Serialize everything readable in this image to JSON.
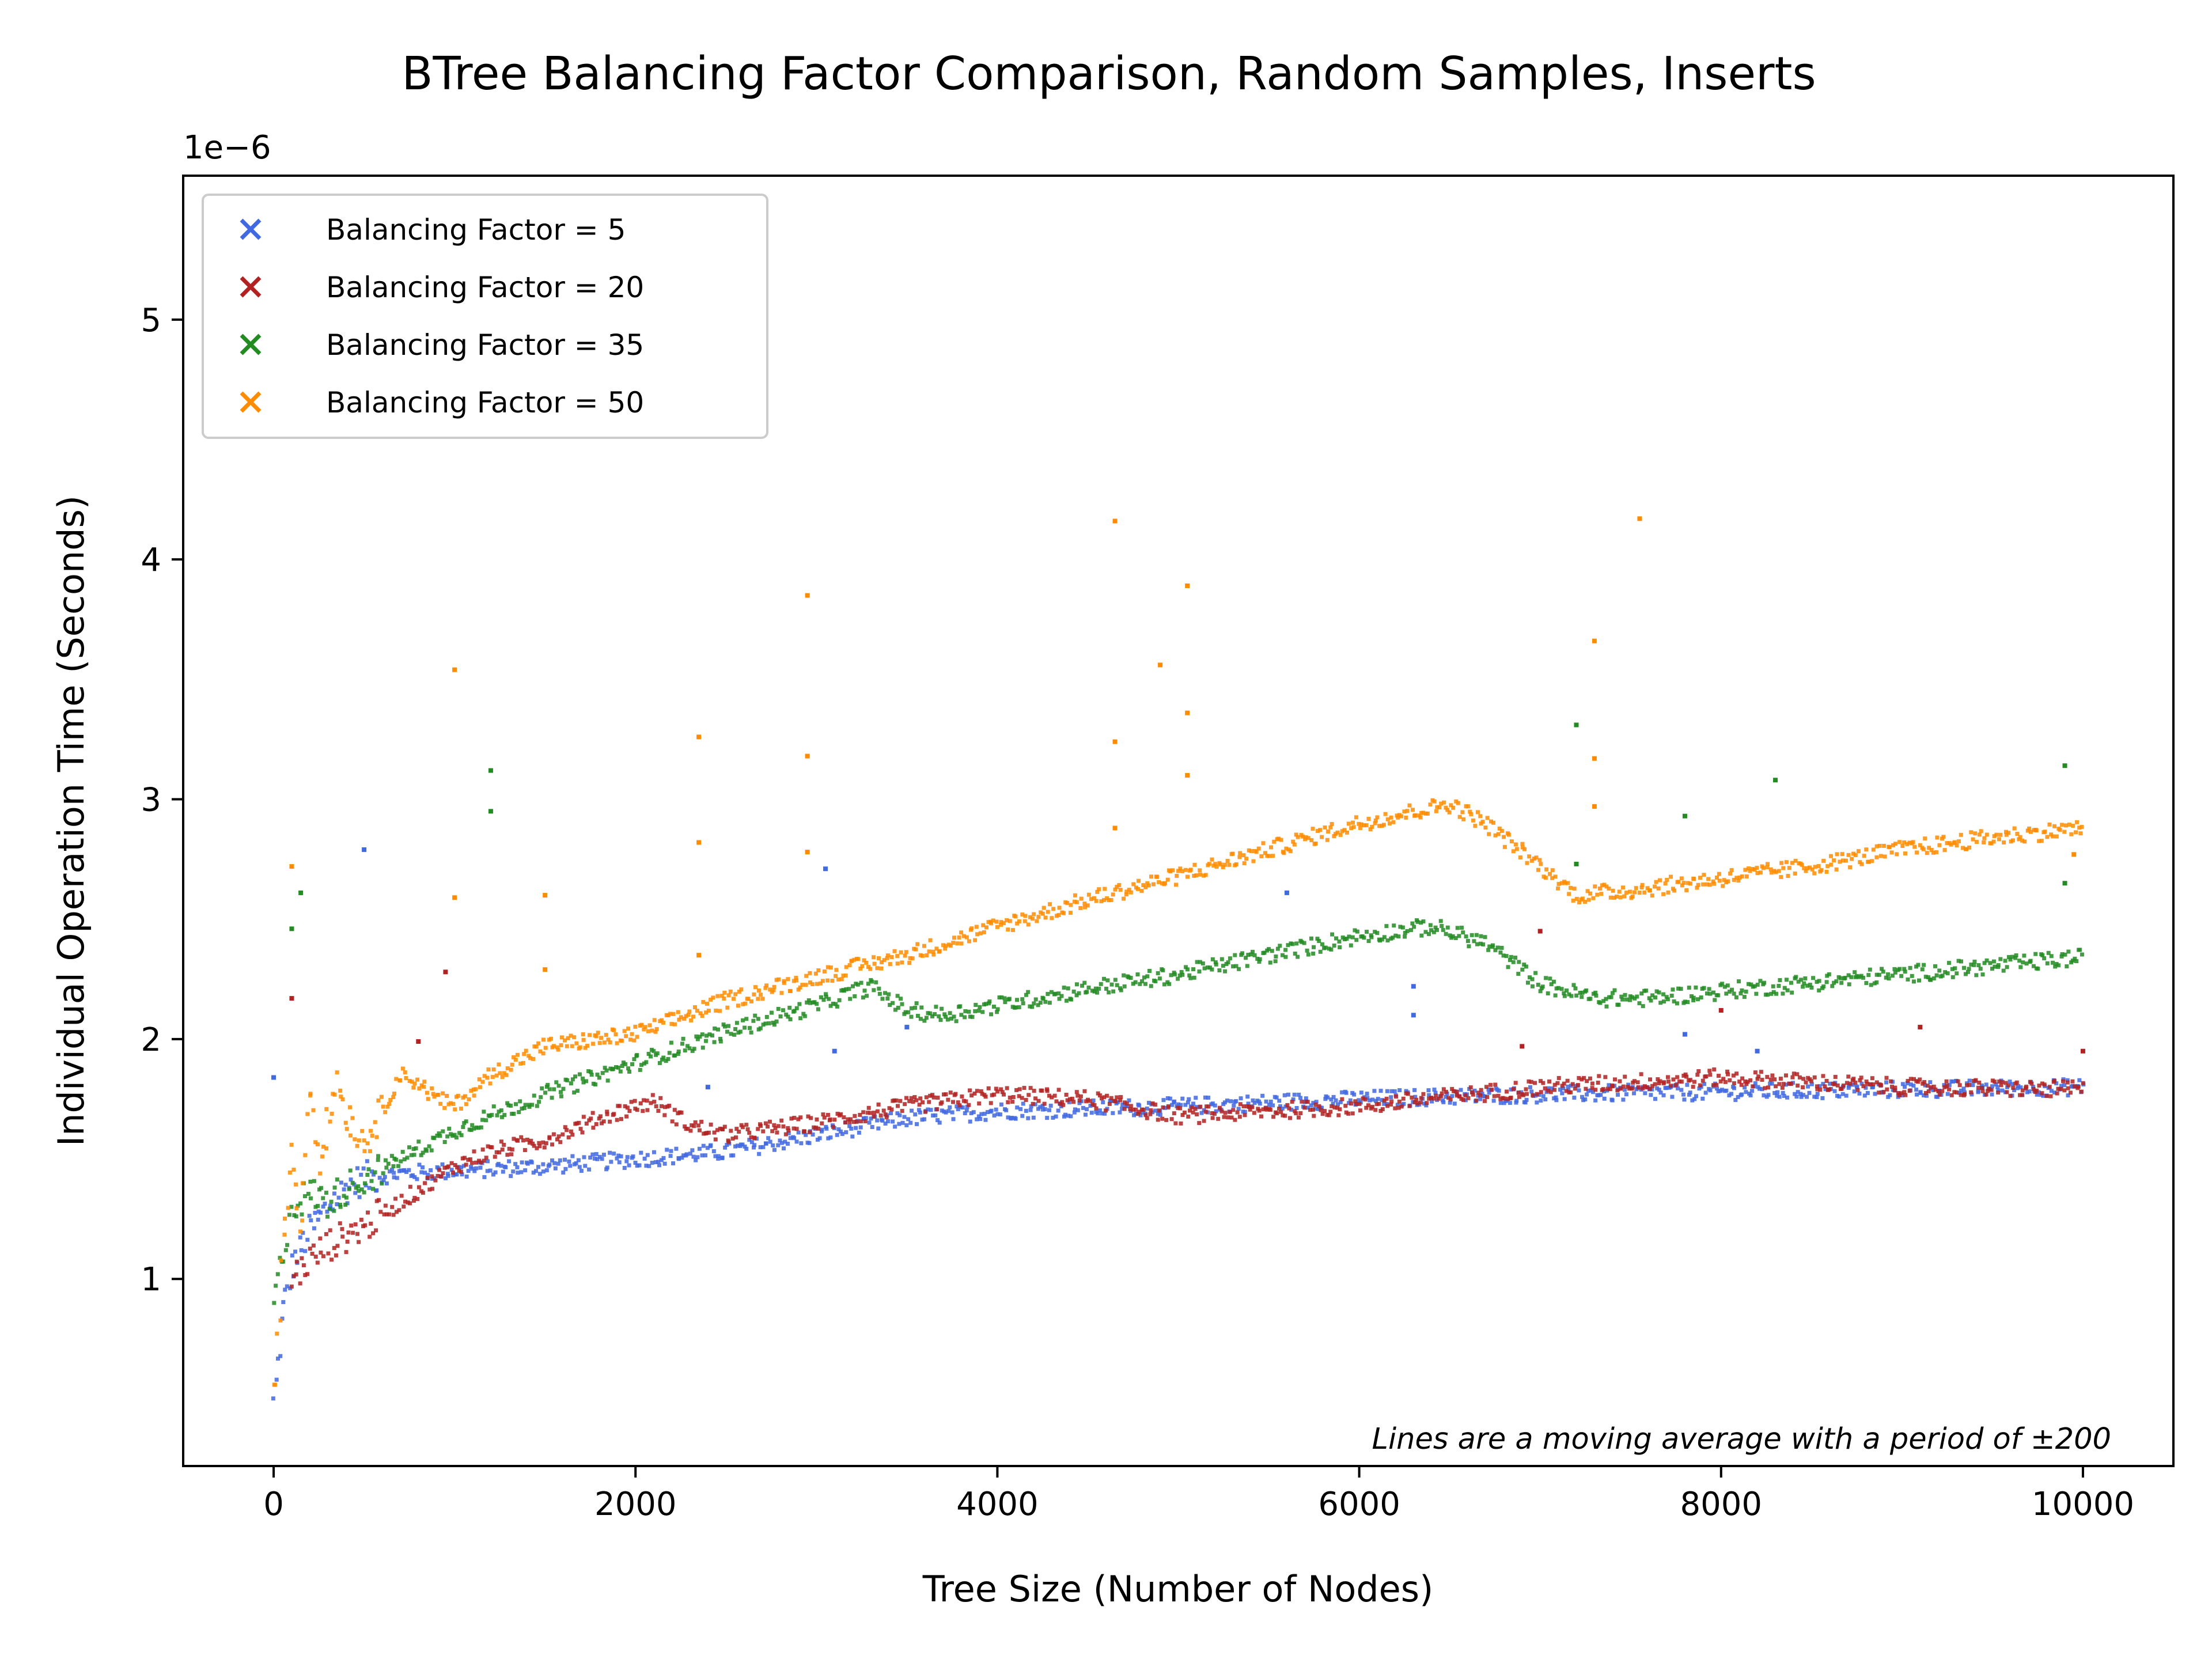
{
  "chart_data": {
    "type": "scatter",
    "title": "BTree Balancing Factor Comparison, Random Samples, Inserts",
    "xlabel": "Tree Size (Number of Nodes)",
    "ylabel": "Individual Operation Time (Seconds)",
    "y_offset_label": "1e−6",
    "annotation": "Lines are a moving average with a period of ±200",
    "xlim": [
      -500,
      10500
    ],
    "ylim": [
      0.22,
      5.6
    ],
    "x_ticks": [
      0,
      2000,
      4000,
      6000,
      8000,
      10000
    ],
    "x_tick_labels": [
      "0",
      "2000",
      "4000",
      "6000",
      "8000",
      "10000"
    ],
    "y_ticks": [
      1,
      2,
      3,
      4,
      5
    ],
    "y_tick_labels": [
      "1",
      "2",
      "3",
      "4",
      "5"
    ],
    "grid": false,
    "legend_position": "top-left",
    "marker": "x",
    "series": [
      {
        "name": "Balancing Factor = 5",
        "color": "#4169e1",
        "trend": [
          [
            0,
            0.48
          ],
          [
            50,
            0.85
          ],
          [
            100,
            1.05
          ],
          [
            200,
            1.2
          ],
          [
            300,
            1.3
          ],
          [
            400,
            1.38
          ],
          [
            500,
            1.42
          ],
          [
            700,
            1.44
          ],
          [
            1000,
            1.45
          ],
          [
            1500,
            1.47
          ],
          [
            2000,
            1.5
          ],
          [
            2500,
            1.53
          ],
          [
            3000,
            1.6
          ],
          [
            3500,
            1.67
          ],
          [
            4000,
            1.7
          ],
          [
            4500,
            1.71
          ],
          [
            5000,
            1.72
          ],
          [
            6000,
            1.75
          ],
          [
            7000,
            1.77
          ],
          [
            8000,
            1.78
          ],
          [
            9000,
            1.79
          ],
          [
            10000,
            1.8
          ]
        ],
        "outliers": [
          [
            0,
            1.84
          ],
          [
            500,
            2.79
          ],
          [
            3050,
            2.71
          ],
          [
            3100,
            1.95
          ],
          [
            2400,
            1.8
          ],
          [
            3500,
            2.05
          ],
          [
            5600,
            2.61
          ],
          [
            6300,
            2.22
          ],
          [
            6300,
            2.1
          ],
          [
            7800,
            2.02
          ],
          [
            8200,
            1.95
          ]
        ]
      },
      {
        "name": "Balancing Factor = 20",
        "color": "#b22222",
        "trend": [
          [
            100,
            1.0
          ],
          [
            200,
            1.08
          ],
          [
            300,
            1.14
          ],
          [
            500,
            1.22
          ],
          [
            700,
            1.32
          ],
          [
            1000,
            1.47
          ],
          [
            1200,
            1.53
          ],
          [
            1500,
            1.58
          ],
          [
            1800,
            1.67
          ],
          [
            2000,
            1.72
          ],
          [
            2100,
            1.74
          ],
          [
            2300,
            1.64
          ],
          [
            2500,
            1.6
          ],
          [
            3000,
            1.65
          ],
          [
            3500,
            1.72
          ],
          [
            4000,
            1.77
          ],
          [
            4500,
            1.75
          ],
          [
            5000,
            1.68
          ],
          [
            5500,
            1.7
          ],
          [
            6000,
            1.72
          ],
          [
            6500,
            1.76
          ],
          [
            7000,
            1.8
          ],
          [
            7500,
            1.82
          ],
          [
            8000,
            1.84
          ],
          [
            8500,
            1.82
          ],
          [
            9000,
            1.8
          ],
          [
            10000,
            1.79
          ]
        ],
        "outliers": [
          [
            100,
            2.17
          ],
          [
            950,
            2.28
          ],
          [
            800,
            1.99
          ],
          [
            6900,
            1.97
          ],
          [
            9100,
            2.05
          ],
          [
            10000,
            1.95
          ],
          [
            8000,
            2.12
          ],
          [
            7000,
            2.45
          ]
        ]
      },
      {
        "name": "Balancing Factor = 35",
        "color": "#228b22",
        "trend": [
          [
            0,
            0.9
          ],
          [
            100,
            1.3
          ],
          [
            200,
            1.36
          ],
          [
            300,
            1.32
          ],
          [
            400,
            1.38
          ],
          [
            500,
            1.42
          ],
          [
            700,
            1.5
          ],
          [
            1000,
            1.62
          ],
          [
            1500,
            1.77
          ],
          [
            2000,
            1.9
          ],
          [
            2500,
            2.03
          ],
          [
            3000,
            2.14
          ],
          [
            3300,
            2.22
          ],
          [
            3500,
            2.12
          ],
          [
            3700,
            2.1
          ],
          [
            4000,
            2.14
          ],
          [
            4500,
            2.21
          ],
          [
            5000,
            2.27
          ],
          [
            5500,
            2.35
          ],
          [
            6000,
            2.43
          ],
          [
            6400,
            2.47
          ],
          [
            6700,
            2.4
          ],
          [
            7000,
            2.23
          ],
          [
            7300,
            2.17
          ],
          [
            7600,
            2.17
          ],
          [
            8000,
            2.2
          ],
          [
            9000,
            2.27
          ],
          [
            10000,
            2.34
          ]
        ],
        "outliers": [
          [
            100,
            2.46
          ],
          [
            150,
            2.61
          ],
          [
            1200,
            3.12
          ],
          [
            1200,
            2.95
          ],
          [
            7200,
            3.31
          ],
          [
            7200,
            2.73
          ],
          [
            7800,
            2.93
          ],
          [
            8300,
            3.08
          ],
          [
            9900,
            3.14
          ],
          [
            9900,
            2.65
          ]
        ]
      },
      {
        "name": "Balancing Factor = 50",
        "color": "#ff8c00",
        "trend": [
          [
            0,
            0.5
          ],
          [
            60,
            1.2
          ],
          [
            100,
            1.55
          ],
          [
            150,
            1.2
          ],
          [
            200,
            1.85
          ],
          [
            250,
            1.5
          ],
          [
            300,
            1.65
          ],
          [
            350,
            1.84
          ],
          [
            400,
            1.7
          ],
          [
            500,
            1.56
          ],
          [
            600,
            1.7
          ],
          [
            700,
            1.85
          ],
          [
            800,
            1.82
          ],
          [
            900,
            1.75
          ],
          [
            1000,
            1.72
          ],
          [
            1200,
            1.85
          ],
          [
            1500,
            1.97
          ],
          [
            2000,
            2.02
          ],
          [
            2500,
            2.16
          ],
          [
            3000,
            2.26
          ],
          [
            3500,
            2.35
          ],
          [
            4000,
            2.47
          ],
          [
            4500,
            2.58
          ],
          [
            5000,
            2.68
          ],
          [
            5500,
            2.79
          ],
          [
            6000,
            2.9
          ],
          [
            6500,
            2.98
          ],
          [
            6700,
            2.9
          ],
          [
            7000,
            2.72
          ],
          [
            7200,
            2.6
          ],
          [
            7500,
            2.62
          ],
          [
            8000,
            2.67
          ],
          [
            8500,
            2.72
          ],
          [
            9000,
            2.79
          ],
          [
            9500,
            2.84
          ],
          [
            10000,
            2.88
          ]
        ],
        "outliers": [
          [
            100,
            2.72
          ],
          [
            1000,
            3.54
          ],
          [
            1000,
            2.59
          ],
          [
            1500,
            2.6
          ],
          [
            1500,
            2.29
          ],
          [
            2350,
            3.26
          ],
          [
            2350,
            2.82
          ],
          [
            2350,
            2.35
          ],
          [
            2950,
            3.85
          ],
          [
            2950,
            2.78
          ],
          [
            2950,
            3.18
          ],
          [
            4650,
            4.16
          ],
          [
            4650,
            3.24
          ],
          [
            4650,
            2.88
          ],
          [
            4900,
            3.56
          ],
          [
            5050,
            3.89
          ],
          [
            5050,
            3.36
          ],
          [
            5050,
            3.1
          ],
          [
            7300,
            3.66
          ],
          [
            7300,
            3.17
          ],
          [
            7300,
            2.97
          ],
          [
            7550,
            4.17
          ],
          [
            9950,
            2.77
          ]
        ]
      }
    ]
  }
}
